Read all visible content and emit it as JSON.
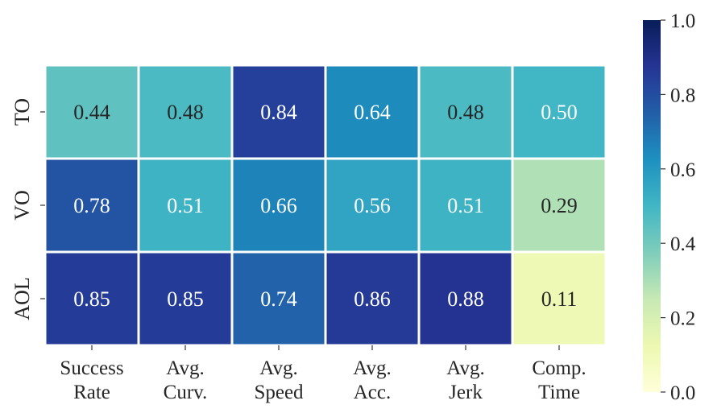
{
  "chart_data": {
    "type": "heatmap",
    "title": "",
    "xlabel": "",
    "ylabel": "",
    "rows": [
      "TO",
      "VO",
      "AOL"
    ],
    "columns": [
      [
        "Success",
        "Rate"
      ],
      [
        "Avg.",
        "Curv."
      ],
      [
        "Avg.",
        "Speed"
      ],
      [
        "Avg.",
        "Acc."
      ],
      [
        "Avg.",
        "Jerk"
      ],
      [
        "Comp.",
        "Time"
      ]
    ],
    "values": [
      [
        0.44,
        0.48,
        0.84,
        0.64,
        0.48,
        0.5
      ],
      [
        0.78,
        0.51,
        0.66,
        0.56,
        0.51,
        0.29
      ],
      [
        0.85,
        0.85,
        0.74,
        0.86,
        0.88,
        0.11
      ]
    ],
    "value_labels": [
      [
        "0.44",
        "0.48",
        "0.84",
        "0.64",
        "0.48",
        "0.50"
      ],
      [
        "0.78",
        "0.51",
        "0.66",
        "0.56",
        "0.51",
        "0.29"
      ],
      [
        "0.85",
        "0.85",
        "0.74",
        "0.86",
        "0.88",
        "0.11"
      ]
    ],
    "colormap": "YlGnBu",
    "vmin": 0.0,
    "vmax": 1.0,
    "colorbar_ticks": [
      "0.0",
      "0.2",
      "0.4",
      "0.6",
      "0.8",
      "1.0"
    ],
    "grid": false,
    "legend": "colorbar-right"
  }
}
